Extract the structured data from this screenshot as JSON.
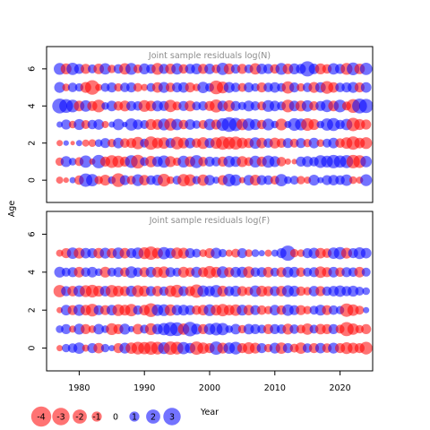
{
  "chart_data": {
    "type": "bubble",
    "ylabel": "Age",
    "xlabel": "Year",
    "x_ticks": [
      1980,
      1990,
      2000,
      2010,
      2020
    ],
    "y_ticks": [
      0,
      2,
      4,
      6
    ],
    "xlim": [
      1975,
      2025
    ],
    "ylim": [
      -1.2,
      7.2
    ],
    "years": [
      1977,
      2024
    ],
    "ages": [
      0,
      1,
      2,
      3,
      4,
      5,
      6
    ],
    "colors": {
      "positive": "#0000ff",
      "negative": "#ff0000"
    },
    "panels": [
      {
        "title": "Joint sample residuals log(N)",
        "rows": [
          {
            "age": 0,
            "residuals": [
              -0.5,
              -0.3,
              0.4,
              -0.9,
              1.8,
              1.5,
              -0.7,
              -1.2,
              0.6,
              -1.9,
              1.0,
              -0.8,
              1.4,
              -1.1,
              0.9,
              1.2,
              -1.6,
              -0.6,
              0.8,
              -1.5,
              -1.4,
              0.7,
              -1.3,
              1.1,
              0.5,
              -1.0,
              1.6,
              1.3,
              -0.4,
              1.1,
              -1.2,
              1.0,
              0.9,
              -0.8,
              1.5,
              0.6,
              0.8,
              -0.7,
              -0.5,
              1.2,
              0.4,
              1.0,
              1.1,
              0.9,
              1.3,
              -0.6,
              -0.5,
              1.4
            ]
          },
          {
            "age": 1,
            "residuals": [
              -0.7,
              1.2,
              0.6,
              -0.8,
              1.5,
              -0.4,
              1.8,
              -1.0,
              -1.6,
              -1.4,
              -1.0,
              1.6,
              -1.9,
              0.8,
              -1.3,
              1.1,
              1.5,
              -1.2,
              -0.7,
              1.4,
              -1.1,
              1.7,
              -0.9,
              1.0,
              0.9,
              -1.0,
              1.3,
              1.1,
              -1.2,
              -0.8,
              1.4,
              -1.0,
              1.5,
              1.2,
              -0.9,
              -0.4,
              -0.3,
              1.0,
              1.2,
              0.9,
              1.6,
              1.4,
              1.8,
              1.5,
              1.7,
              -1.8,
              -1.6,
              1.3
            ]
          },
          {
            "age": 2,
            "residuals": [
              -0.4,
              0.3,
              -0.2,
              0.4,
              -0.5,
              -0.6,
              0.6,
              1.0,
              -0.7,
              1.1,
              -0.9,
              -1.0,
              -1.5,
              0.8,
              -1.8,
              -1.2,
              -1.3,
              1.0,
              -1.6,
              -1.2,
              1.1,
              -0.9,
              -1.4,
              1.0,
              -1.3,
              -1.8,
              -1.5,
              -1.7,
              -1.2,
              -1.0,
              1.3,
              -1.1,
              0.9,
              -1.2,
              -0.9,
              1.0,
              -0.8,
              1.0,
              -0.7,
              1.1,
              -0.6,
              0.8,
              1.1,
              -0.9,
              -1.3,
              -1.8,
              -1.1,
              -1.4
            ]
          },
          {
            "age": 3,
            "residuals": [
              0.4,
              1.0,
              -0.6,
              1.2,
              -0.8,
              0.9,
              1.1,
              -0.5,
              0.4,
              1.3,
              0.3,
              1.5,
              1.0,
              0.8,
              -1.2,
              -1.1,
              1.4,
              -1.5,
              1.3,
              -0.9,
              1.1,
              0.7,
              -0.8,
              1.3,
              -1.0,
              1.6,
              2.2,
              1.8,
              -1.3,
              1.5,
              1.2,
              -0.9,
              1.4,
              0.6,
              -1.4,
              0.5,
              1.6,
              1.4,
              -1.6,
              -1.2,
              0.6,
              1.5,
              1.7,
              0.9,
              1.3,
              -1.8,
              -1.2,
              -1.0
            ]
          },
          {
            "age": 4,
            "residuals": [
              2.2,
              1.9,
              1.6,
              -1.1,
              1.3,
              -1.0,
              -1.6,
              0.6,
              1.1,
              -0.9,
              -1.2,
              1.0,
              0.9,
              -1.4,
              -1.1,
              1.2,
              1.0,
              -1.5,
              -0.8,
              1.0,
              -1.2,
              0.8,
              0.9,
              -1.0,
              -1.7,
              1.1,
              -1.3,
              1.0,
              0.7,
              1.2,
              0.9,
              -0.8,
              1.4,
              1.1,
              0.8,
              -1.6,
              1.1,
              -1.2,
              1.3,
              -0.9,
              1.0,
              1.5,
              -1.1,
              1.6,
              -0.8,
              -1.9,
              2.2,
              2.0
            ]
          },
          {
            "age": 5,
            "residuals": [
              1.2,
              -0.6,
              0.9,
              0.7,
              -1.2,
              -2.1,
              -0.5,
              0.8,
              1.0,
              -0.7,
              0.9,
              1.0,
              -0.8,
              -0.5,
              0.8,
              -1.1,
              1.2,
              -0.9,
              1.0,
              1.1,
              -1.0,
              -0.6,
              1.3,
              0.8,
              -1.9,
              -1.4,
              1.2,
              0.9,
              -0.8,
              1.0,
              0.7,
              -1.0,
              0.9,
              1.1,
              0.8,
              -1.5,
              1.0,
              -0.7,
              0.9,
              -1.2,
              1.1,
              -1.6,
              -1.1,
              0.9,
              1.0,
              1.2,
              -1.0,
              1.1
            ]
          },
          {
            "age": 6,
            "residuals": [
              1.4,
              -1.2,
              1.5,
              1.0,
              -1.0,
              0.8,
              -1.1,
              1.3,
              -0.7,
              0.9,
              -1.3,
              1.4,
              -0.8,
              1.2,
              0.9,
              -1.4,
              1.0,
              -1.1,
              1.3,
              -0.9,
              1.0,
              1.2,
              -1.0,
              1.1,
              -0.8,
              1.5,
              -1.2,
              0.9,
              -1.0,
              0.8,
              -1.3,
              1.1,
              1.0,
              -0.9,
              1.4,
              -1.1,
              1.2,
              1.0,
              2.3,
              1.1,
              -1.2,
              -0.9,
              1.3,
              1.0,
              -1.4,
              1.6,
              -1.1,
              1.5
            ]
          }
        ]
      },
      {
        "title": "Joint sample residuals log(F)",
        "rows": [
          {
            "age": 0,
            "residuals": [
              -0.4,
              0.7,
              0.9,
              1.3,
              -0.5,
              1.0,
              -1.1,
              0.7,
              0.4,
              -1.0,
              1.2,
              -1.3,
              -1.6,
              -1.5,
              -1.8,
              -1.6,
              1.4,
              -1.8,
              -1.6,
              1.5,
              1.1,
              -1.8,
              -1.3,
              -1.0,
              1.8,
              -1.2,
              1.3,
              1.6,
              -1.0,
              -1.4,
              -1.2,
              1.0,
              -0.7,
              1.2,
              -1.3,
              1.0,
              -0.8,
              -1.3,
              0.9,
              -1.0,
              1.1,
              -0.9,
              1.2,
              -1.0,
              -1.4,
              -1.2,
              -1.0,
              -1.6
            ]
          },
          {
            "age": 1,
            "residuals": [
              0.6,
              1.0,
              -0.5,
              1.2,
              -1.0,
              -0.6,
              1.1,
              0.6,
              -1.4,
              -1.0,
              1.2,
              0.4,
              -1.1,
              0.8,
              -1.4,
              1.1,
              1.5,
              2.0,
              1.9,
              -1.3,
              2.1,
              1.2,
              -1.0,
              1.3,
              1.6,
              1.5,
              0.6,
              1.1,
              -0.7,
              1.1,
              1.0,
              0.8,
              -1.0,
              1.0,
              0.9,
              -1.2,
              0.9,
              -0.8,
              -1.3,
              0.8,
              -1.1,
              -1.0,
              1.0,
              -0.8,
              -2.0,
              -1.3,
              -0.7,
              -1.0
            ]
          },
          {
            "age": 2,
            "residuals": [
              -0.4,
              1.1,
              -1.0,
              1.3,
              -1.1,
              -1.6,
              1.0,
              -1.0,
              1.1,
              -1.4,
              -1.2,
              -1.5,
              0.9,
              -1.1,
              -1.9,
              1.3,
              1.4,
              -1.3,
              1.1,
              1.2,
              1.0,
              -0.9,
              -1.1,
              1.4,
              -1.2,
              -1.5,
              -1.1,
              -1.3,
              1.2,
              -1.1,
              1.0,
              -0.9,
              -0.7,
              1.1,
              -0.9,
              1.3,
              1.0,
              -1.0,
              -0.7,
              0.8,
              1.2,
              -1.0,
              0.9,
              0.7,
              -1.8,
              -1.3,
              -0.8,
              0.4
            ]
          },
          {
            "age": 3,
            "residuals": [
              -1.5,
              1.0,
              -1.1,
              1.3,
              -1.4,
              -1.6,
              -1.2,
              1.1,
              -1.5,
              -1.2,
              -1.0,
              1.2,
              -1.4,
              -1.2,
              1.0,
              -1.1,
              0.9,
              -1.3,
              -1.6,
              1.0,
              -1.0,
              -1.8,
              1.3,
              1.1,
              1.5,
              -1.2,
              1.0,
              1.2,
              -1.0,
              -0.8,
              1.3,
              -1.2,
              -1.0,
              1.0,
              -1.1,
              1.4,
              1.2,
              -0.9,
              -0.7,
              1.1,
              -1.0,
              0.9,
              1.1,
              1.3,
              1.0,
              1.2,
              0.8,
              0.6
            ]
          },
          {
            "age": 4,
            "residuals": [
              1.2,
              0.8,
              1.0,
              -1.1,
              0.9,
              1.1,
              0.6,
              -1.2,
              0.8,
              1.0,
              -0.9,
              1.4,
              0.9,
              -1.0,
              1.1,
              -1.1,
              -1.3,
              1.0,
              0.8,
              -1.2,
              -0.9,
              1.2,
              -1.0,
              -1.5,
              -1.1,
              1.4,
              -1.0,
              1.1,
              1.2,
              -1.3,
              0.9,
              1.0,
              -1.1,
              0.8,
              -1.0,
              1.2,
              1.1,
              -0.9,
              0.8,
              1.0,
              -1.3,
              -1.0,
              1.1,
              -0.9,
              1.0,
              0.9,
              -1.1,
              0.8
            ]
          },
          {
            "age": 5,
            "residuals": [
              -0.5,
              -1.0,
              1.3,
              -1.2,
              1.1,
              1.0,
              -1.1,
              1.2,
              -1.0,
              1.3,
              -1.1,
              1.0,
              1.3,
              -1.4,
              -1.8,
              -1.2,
              1.5,
              1.1,
              -1.3,
              -1.2,
              1.0,
              0.8,
              -0.6,
              -1.0,
              1.2,
              0.7,
              -0.5,
              -0.8,
              1.0,
              -0.6,
              0.6,
              0.4,
              -0.5,
              0.5,
              1.0,
              2.3,
              -0.7,
              -0.6,
              1.0,
              1.2,
              -1.1,
              -0.9,
              1.3,
              1.5,
              -1.2,
              1.0,
              1.4,
              1.1
            ]
          },
          {
            "age": 6,
            "residuals": []
          }
        ]
      }
    ],
    "legend": [
      {
        "label": "-4",
        "value": -4
      },
      {
        "label": "-3",
        "value": -3
      },
      {
        "label": "-2",
        "value": -2
      },
      {
        "label": "-1",
        "value": -1
      },
      {
        "label": "0",
        "value": 0
      },
      {
        "label": "1",
        "value": 1
      },
      {
        "label": "2",
        "value": 2
      },
      {
        "label": "3",
        "value": 3
      }
    ]
  }
}
